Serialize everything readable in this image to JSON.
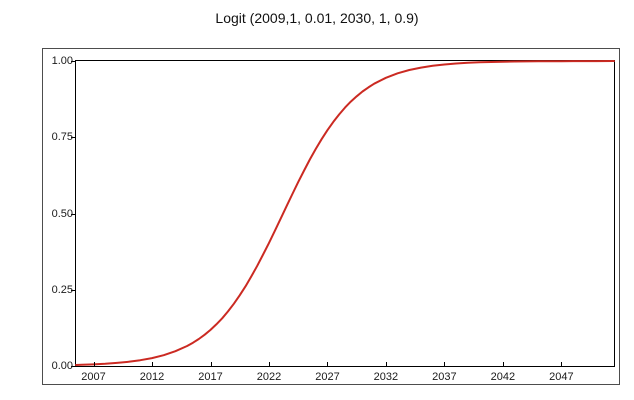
{
  "page": {
    "background": "#ffffff"
  },
  "chart_data": {
    "type": "line",
    "title": "Logit (2009,1, 0.01, 2030, 1, 0.9)",
    "xlabel": "",
    "ylabel": "",
    "xlim": [
      2005.5,
      2051.5
    ],
    "ylim": [
      0,
      1
    ],
    "xticks": [
      2007,
      2012,
      2017,
      2022,
      2027,
      2032,
      2037,
      2042,
      2047
    ],
    "xtick_labels": [
      "2007",
      "2012",
      "2017",
      "2022",
      "2027",
      "2032",
      "2037",
      "2042",
      "2047"
    ],
    "yticks": [
      0,
      0.25,
      0.5,
      0.75,
      1
    ],
    "ytick_labels": [
      "0.00",
      "0.25",
      "0.50",
      "0.75",
      "1.00"
    ],
    "grid": false,
    "legend": "none",
    "frame": true,
    "axis_color": "#000000",
    "outer_border_color": "#4d4d4d",
    "text_color": "#1a1a1a",
    "series": [
      {
        "name": "Logit(2009,1,0.01,2030,1,0.9)",
        "color": "#cb2a22",
        "stroke_width": 2,
        "points": [
          [
            2005.5,
            0.0033
          ],
          [
            2006,
            0.0038
          ],
          [
            2007,
            0.0053
          ],
          [
            2008,
            0.0073
          ],
          [
            2009,
            0.01
          ],
          [
            2010,
            0.0138
          ],
          [
            2011,
            0.0189
          ],
          [
            2012,
            0.026
          ],
          [
            2013,
            0.0355
          ],
          [
            2014,
            0.0484
          ],
          [
            2015,
            0.0657
          ],
          [
            2015.5,
            0.0764
          ],
          [
            2016,
            0.0886
          ],
          [
            2016.5,
            0.1026
          ],
          [
            2017,
            0.1184
          ],
          [
            2017.5,
            0.1363
          ],
          [
            2018,
            0.1565
          ],
          [
            2018.5,
            0.1791
          ],
          [
            2019,
            0.2041
          ],
          [
            2019.5,
            0.2317
          ],
          [
            2020,
            0.2617
          ],
          [
            2020.5,
            0.2941
          ],
          [
            2021,
            0.3287
          ],
          [
            2021.5,
            0.3655
          ],
          [
            2022,
            0.4036
          ],
          [
            2022.5,
            0.4431
          ],
          [
            2023,
            0.4833
          ],
          [
            2023.5,
            0.5237
          ],
          [
            2024,
            0.5638
          ],
          [
            2024.5,
            0.603
          ],
          [
            2025,
            0.641
          ],
          [
            2025.5,
            0.6774
          ],
          [
            2026,
            0.7117
          ],
          [
            2026.5,
            0.7436
          ],
          [
            2027,
            0.7733
          ],
          [
            2027.5,
            0.8004
          ],
          [
            2028,
            0.8249
          ],
          [
            2028.5,
            0.8471
          ],
          [
            2029,
            0.8669
          ],
          [
            2029.5,
            0.8844
          ],
          [
            2030,
            0.9
          ],
          [
            2030.5,
            0.9136
          ],
          [
            2031,
            0.9256
          ],
          [
            2032,
            0.945
          ],
          [
            2033,
            0.9596
          ],
          [
            2034,
            0.9704
          ],
          [
            2035,
            0.9784
          ],
          [
            2036,
            0.9843
          ],
          [
            2037,
            0.9886
          ],
          [
            2038,
            0.9917
          ],
          [
            2039,
            0.994
          ],
          [
            2040,
            0.9956
          ],
          [
            2041,
            0.9968
          ],
          [
            2042,
            0.9977
          ],
          [
            2043,
            0.9983
          ],
          [
            2044,
            0.9988
          ],
          [
            2045,
            0.9991
          ],
          [
            2046,
            0.9994
          ],
          [
            2047,
            0.9995
          ],
          [
            2048,
            0.9997
          ],
          [
            2049,
            0.9998
          ],
          [
            2050,
            0.9998
          ],
          [
            2051.5,
            0.9999
          ]
        ]
      }
    ]
  }
}
